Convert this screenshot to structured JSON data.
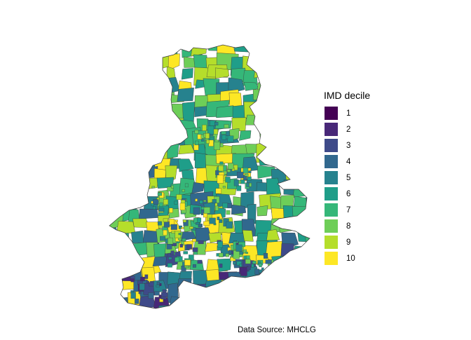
{
  "legend": {
    "title": "IMD decile",
    "items": [
      {
        "label": "1",
        "color": "#440154"
      },
      {
        "label": "2",
        "color": "#482878"
      },
      {
        "label": "3",
        "color": "#3e4a89"
      },
      {
        "label": "4",
        "color": "#31688e"
      },
      {
        "label": "5",
        "color": "#26828e"
      },
      {
        "label": "6",
        "color": "#1f9e89"
      },
      {
        "label": "7",
        "color": "#35b779"
      },
      {
        "label": "8",
        "color": "#6ece58"
      },
      {
        "label": "9",
        "color": "#b5de2b"
      },
      {
        "label": "10",
        "color": "#fde725"
      }
    ]
  },
  "caption": "Data Source: MHCLG",
  "map": {
    "border_color": "#3a3a3a"
  }
}
